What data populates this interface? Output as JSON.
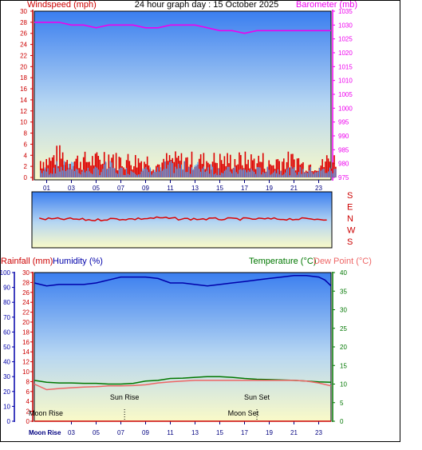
{
  "title": "24 hour graph day : 15 October 2025",
  "colors": {
    "wind": "#dd0000",
    "gust_line": "#3399ff",
    "barometer": "#ee00ee",
    "rain": "#cc0000",
    "humidity": "#0000aa",
    "temperature": "#007700",
    "dewpoint": "#ee6666",
    "moon": "#000080",
    "axis_time": "#000080"
  },
  "top_chart": {
    "left_label": "Windspeed (mph)",
    "right_label": "Barometer (mb)",
    "left_ticks": [
      "0",
      "2",
      "4",
      "6",
      "8",
      "10",
      "12",
      "14",
      "16",
      "18",
      "20",
      "22",
      "24",
      "26",
      "28",
      "30"
    ],
    "right_ticks": [
      "975",
      "980",
      "985",
      "990",
      "995",
      "1000",
      "1005",
      "1010",
      "1015",
      "1020",
      "1025",
      "1030",
      "1035"
    ],
    "x_ticks": [
      "01",
      "03",
      "05",
      "07",
      "09",
      "11",
      "13",
      "15",
      "17",
      "19",
      "21",
      "23"
    ]
  },
  "direction_chart": {
    "labels": [
      "S",
      "E",
      "N",
      "W",
      "S"
    ]
  },
  "bottom_chart": {
    "left_label_rain": "Rainfall (mm)",
    "left_label_humidity": "Humidity (%)",
    "right_label_temp": "Temperature (°C)",
    "right_label_dew": "Dew Point (°C)",
    "rain_ticks": [
      "0",
      "2",
      "4",
      "6",
      "8",
      "10",
      "12",
      "14",
      "16",
      "18",
      "20",
      "22",
      "24",
      "26",
      "28",
      "30"
    ],
    "humidity_ticks": [
      "0",
      "10",
      "20",
      "30",
      "40",
      "50",
      "60",
      "70",
      "80",
      "90",
      "100"
    ],
    "temp_ticks": [
      "0",
      "5",
      "10",
      "15",
      "20",
      "25",
      "30",
      "35",
      "40"
    ],
    "x_ticks": [
      "03",
      "05",
      "07",
      "09",
      "11",
      "13",
      "15",
      "17",
      "19",
      "21",
      "23"
    ],
    "x_first_label": "Moon Rise",
    "annotations": [
      {
        "text": "Sun Rise",
        "hour": 7.3
      },
      {
        "text": "Sun Set",
        "hour": 18.0
      },
      {
        "text": "Moon Rise",
        "hour": 0.0
      },
      {
        "text": "Moon Set",
        "hour": 16.9
      }
    ]
  },
  "chart_data": [
    {
      "type": "line",
      "title": "24 hour graph day : 15 October 2025",
      "x_unit": "hour",
      "series": [
        {
          "name": "Barometer (mb)",
          "axis": "right",
          "ylim": [
            975,
            1035
          ],
          "x": [
            0,
            1,
            2,
            3,
            4,
            5,
            6,
            7,
            8,
            9,
            10,
            11,
            12,
            13,
            14,
            15,
            16,
            17,
            18,
            19,
            20,
            21,
            22,
            23,
            24
          ],
          "values": [
            1031,
            1031,
            1031,
            1030,
            1030,
            1029,
            1030,
            1030,
            1030,
            1029,
            1029,
            1030,
            1030,
            1030,
            1029,
            1028,
            1028,
            1027,
            1028,
            1028,
            1028,
            1028,
            1028,
            1028,
            1028
          ]
        },
        {
          "name": "Windspeed (mph)",
          "axis": "left",
          "ylim": [
            0,
            30
          ],
          "x": [
            0,
            1,
            2,
            3,
            4,
            5,
            6,
            7,
            8,
            9,
            10,
            11,
            12,
            13,
            14,
            15,
            16,
            17,
            18,
            19,
            20,
            21,
            22,
            23,
            24
          ],
          "values": [
            2,
            3,
            3,
            2,
            2,
            3,
            2,
            2,
            2,
            2,
            3,
            3,
            3,
            3,
            2,
            2,
            2,
            2,
            2,
            2,
            2,
            2,
            2,
            2,
            2
          ]
        },
        {
          "name": "Gust (mph)",
          "axis": "left",
          "ylim": [
            0,
            30
          ],
          "x": [
            0,
            1,
            2,
            3,
            4,
            5,
            6,
            7,
            8,
            9,
            10,
            11,
            12,
            13,
            14,
            15,
            16,
            17,
            18,
            19,
            20,
            21,
            22,
            23,
            24
          ],
          "values": [
            4,
            5,
            4,
            4,
            4,
            5,
            4,
            4,
            4,
            3,
            4,
            4,
            4,
            4,
            4,
            4,
            4,
            4,
            3,
            4,
            4,
            3,
            3,
            4,
            4
          ]
        }
      ]
    },
    {
      "type": "line",
      "title": "",
      "x_unit": "hour",
      "ylabels": [
        "S",
        "E",
        "N",
        "W",
        "S"
      ],
      "series": [
        {
          "name": "Wind direction",
          "x": [
            0,
            3,
            5,
            6,
            8,
            10,
            12,
            14,
            16,
            18,
            20,
            22,
            24
          ],
          "values": [
            0.5,
            0.5,
            0.48,
            0.5,
            0.5,
            0.52,
            0.5,
            0.5,
            0.5,
            0.5,
            0.5,
            0.5,
            0.5
          ]
        }
      ]
    },
    {
      "type": "line",
      "title": "",
      "x_unit": "hour",
      "series": [
        {
          "name": "Humidity (%)",
          "axis": "left",
          "ylim": [
            0,
            100
          ],
          "x": [
            0,
            1,
            2,
            3,
            4,
            5,
            6,
            7,
            8,
            9,
            10,
            11,
            12,
            13,
            14,
            15,
            16,
            17,
            18,
            19,
            20,
            21,
            22,
            23,
            23.5,
            24
          ],
          "values": [
            93,
            91,
            92,
            92,
            92,
            93,
            95,
            97,
            97,
            97,
            96,
            93,
            93,
            92,
            91,
            92,
            93,
            94,
            95,
            96,
            97,
            98,
            98,
            97,
            95,
            91
          ]
        },
        {
          "name": "Temperature (°C)",
          "axis": "right",
          "ylim": [
            0,
            40
          ],
          "x": [
            0,
            1,
            2,
            3,
            4,
            5,
            6,
            7,
            8,
            9,
            10,
            11,
            12,
            13,
            14,
            15,
            16,
            17,
            18,
            19,
            20,
            21,
            22,
            23,
            24
          ],
          "values": [
            11,
            10.5,
            10.3,
            10.3,
            10.2,
            10.2,
            10,
            10,
            10.2,
            10.8,
            11,
            11.5,
            11.6,
            11.8,
            12,
            12,
            11.8,
            11.5,
            11.3,
            11.2,
            11.1,
            11,
            10.8,
            10.6,
            10.5
          ]
        },
        {
          "name": "Dew Point (°C)",
          "axis": "right",
          "ylim": [
            0,
            40
          ],
          "x": [
            0,
            1,
            2,
            3,
            4,
            5,
            6,
            7,
            8,
            9,
            10,
            11,
            12,
            13,
            14,
            15,
            16,
            17,
            18,
            19,
            20,
            21,
            22,
            23,
            24
          ],
          "values": [
            10,
            8.5,
            8.8,
            9,
            9.2,
            9.3,
            9.5,
            9.5,
            9.6,
            9.8,
            10.3,
            10.6,
            10.8,
            11,
            11,
            11,
            11,
            11,
            11,
            11,
            11,
            11,
            10.8,
            10.3,
            9.5
          ]
        },
        {
          "name": "Rainfall (mm)",
          "axis": "left",
          "ylim": [
            0,
            30
          ],
          "x": [
            0,
            24
          ],
          "values": [
            0,
            0
          ]
        }
      ]
    }
  ]
}
